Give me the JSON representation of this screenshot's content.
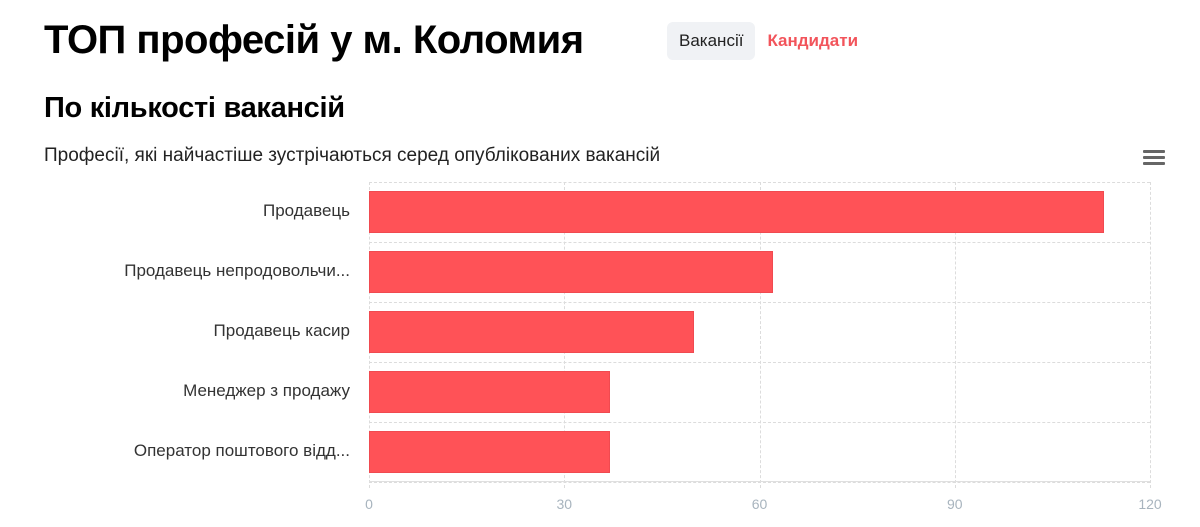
{
  "header": {
    "title": "ТОП професій у м. Коломия",
    "tabs": [
      {
        "label": "Вакансії",
        "active": true
      },
      {
        "label": "Кандидати",
        "active": false
      }
    ]
  },
  "section": {
    "title": "По кількості вакансій",
    "subtitle": "Професії, які найчастіше зустрічаються серед опублікованих вакансій",
    "menu_icon": "hamburger-menu-icon"
  },
  "colors": {
    "bar": "#ff5257",
    "accent": "#f2545b",
    "tick": "#a8b4be"
  },
  "chart_data": {
    "type": "bar",
    "orientation": "horizontal",
    "title": "Професії, які найчастіше зустрічаються серед опублікованих вакансій",
    "categories": [
      "Продавець",
      "Продавець непродовольчи...",
      "Продавець касир",
      "Менеджер з продажу",
      "Оператор поштового відд..."
    ],
    "values": [
      113,
      62,
      50,
      37,
      37
    ],
    "xlabel": "",
    "ylabel": "",
    "xlim": [
      0,
      120
    ],
    "ticks": [
      "0",
      "30",
      "60",
      "90",
      "120"
    ],
    "grid": true,
    "legend": "none"
  }
}
